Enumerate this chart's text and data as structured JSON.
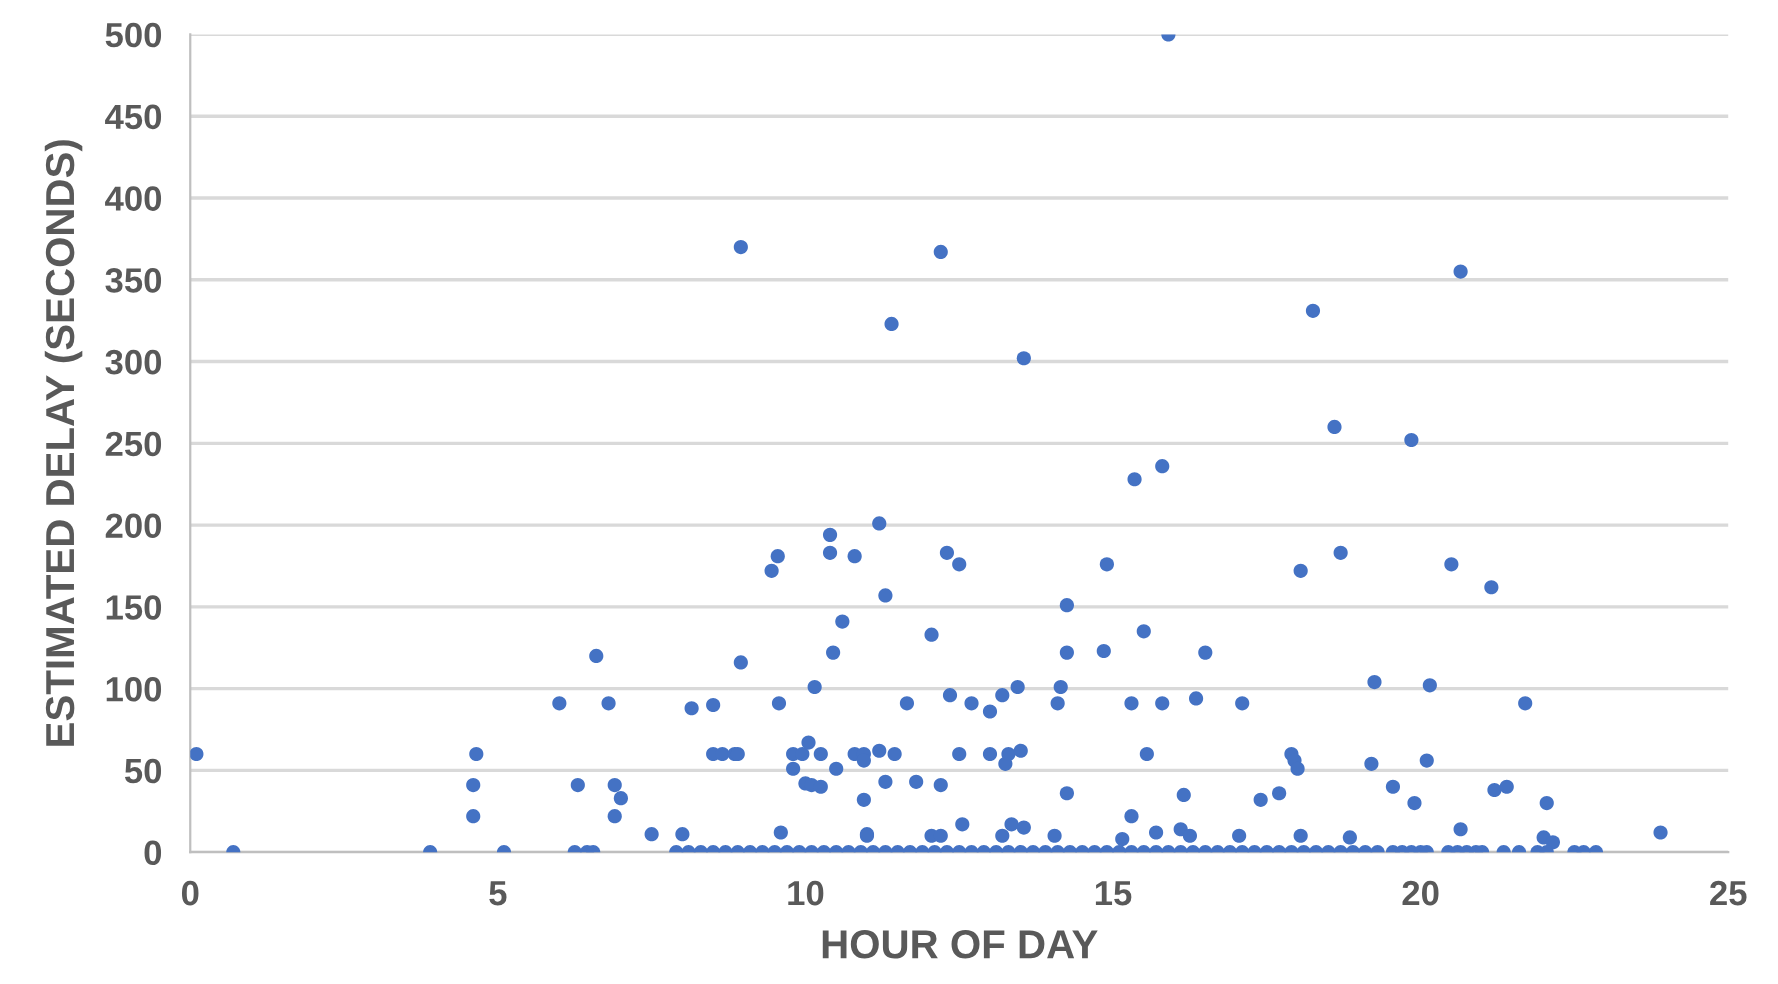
{
  "chart_data": {
    "type": "scatter",
    "xlabel": "HOUR OF DAY",
    "ylabel": "ESTIMATED DELAY (SECONDS)",
    "xlim": [
      0,
      25
    ],
    "xticks": [
      0,
      5,
      10,
      15,
      20,
      25
    ],
    "ylim": [
      0,
      500
    ],
    "yticks": [
      0,
      50,
      100,
      150,
      200,
      250,
      300,
      350,
      400,
      450,
      500
    ],
    "grid": "y",
    "marker": "circle",
    "series": [
      {
        "color": "#4472c4",
        "x": [
          0.1,
          0.7,
          3.9,
          4.6,
          4.6,
          4.65,
          5.1,
          6.0,
          6.25,
          6.3,
          6.45,
          6.55,
          6.6,
          6.8,
          6.9,
          6.9,
          7.0,
          7.5,
          8.0,
          8.15,
          8.5,
          8.5,
          8.65,
          8.85,
          8.9,
          8.95,
          9.45,
          9.55,
          9.57,
          9.6,
          9.8,
          9.95,
          10.25,
          9.8,
          10.05,
          10.0,
          10.1,
          10.15,
          10.25,
          10.4,
          10.4,
          10.45,
          10.5,
          10.6,
          10.8,
          10.8,
          10.95,
          10.95,
          10.95,
          11.0,
          11.4,
          13.55,
          18.25,
          18.6,
          19.85,
          11.2,
          11.3,
          12.3,
          12.5,
          14.9,
          12.05,
          14.25,
          14.25,
          14.85,
          15.5,
          15.35,
          15.8,
          16.5,
          18.05,
          18.7,
          20.5,
          21.15,
          11.65,
          12.35,
          12.7,
          13.0,
          13.2,
          13.45,
          14.1,
          14.15,
          15.3,
          15.8,
          16.35,
          17.1,
          19.25,
          20.15,
          21.7,
          11.2,
          11.45,
          12.5,
          13.0,
          13.25,
          13.3,
          13.5,
          15.55,
          17.9,
          17.95,
          18.0,
          19.2,
          20.1,
          11.3,
          11.8,
          12.2,
          14.25,
          16.15,
          17.4,
          17.7,
          19.55,
          19.9,
          21.2,
          21.4,
          22.05,
          15.3,
          23.9,
          11.0,
          12.05,
          12.2,
          12.55,
          13.2,
          13.35,
          13.55,
          14.05,
          15.15,
          15.7,
          16.1,
          16.25,
          17.05,
          18.05,
          18.85,
          20.65,
          22.0,
          22.15,
          8.95,
          12.2,
          15.9,
          20.65,
          7.9,
          8.1,
          8.3,
          8.5,
          8.7,
          8.9,
          9.1,
          9.3,
          9.5,
          9.7,
          9.9,
          10.1,
          10.3,
          10.5,
          10.7,
          10.9,
          11.1,
          11.3,
          11.5,
          11.7,
          11.9,
          12.1,
          12.3,
          12.5,
          12.7,
          12.9,
          13.1,
          13.3,
          13.5,
          13.7,
          13.9,
          14.1,
          14.3,
          14.5,
          14.7,
          14.9,
          15.1,
          15.3,
          15.5,
          15.7,
          15.9,
          16.1,
          16.3,
          16.5,
          16.7,
          16.9,
          17.1,
          17.3,
          17.5,
          17.7,
          17.9,
          18.1,
          18.3,
          18.5,
          18.7,
          18.9,
          19.1,
          19.3,
          19.55,
          19.7,
          19.85,
          20.0,
          20.1,
          20.45,
          20.6,
          20.75,
          20.9,
          21.0,
          21.35,
          21.6,
          21.9,
          22.05,
          22.5,
          22.65,
          22.85
        ],
        "values": [
          60,
          0,
          0,
          41,
          22,
          60,
          0,
          91,
          0,
          41,
          0,
          0,
          120,
          91,
          41,
          22,
          33,
          11,
          11,
          88,
          90,
          60,
          60,
          60,
          60,
          116,
          172,
          181,
          91,
          12,
          60,
          60,
          60,
          51,
          67,
          42,
          41,
          101,
          40,
          194,
          183,
          122,
          51,
          141,
          181,
          60,
          60,
          56,
          32,
          11,
          323,
          302,
          331,
          260,
          252,
          201,
          157,
          183,
          176,
          176,
          133,
          151,
          122,
          123,
          135,
          228,
          236,
          122,
          172,
          183,
          176,
          162,
          91,
          96,
          91,
          86,
          96,
          101,
          91,
          101,
          91,
          91,
          94,
          91,
          104,
          102,
          91,
          62,
          60,
          60,
          60,
          54,
          60,
          62,
          60,
          60,
          56,
          51,
          54,
          56,
          43,
          43,
          41,
          36,
          35,
          32,
          36,
          40,
          30,
          38,
          40,
          30,
          22,
          12,
          10,
          10,
          10,
          17,
          10,
          17,
          15,
          10,
          8,
          12,
          14,
          10,
          10,
          10,
          9,
          14,
          9,
          6,
          370,
          367,
          500,
          355,
          0,
          0,
          0,
          0,
          0,
          0,
          0,
          0,
          0,
          0,
          0,
          0,
          0,
          0,
          0,
          0,
          0,
          0,
          0,
          0,
          0,
          0,
          0,
          0,
          0,
          0,
          0,
          0,
          0,
          0,
          0,
          0,
          0,
          0,
          0,
          0,
          0,
          0,
          0,
          0,
          0,
          0,
          0,
          0,
          0,
          0,
          0,
          0,
          0,
          0,
          0,
          0,
          0,
          0,
          0,
          0,
          0,
          0,
          0,
          0,
          0,
          0,
          0,
          0,
          0,
          0,
          0,
          0,
          0,
          0,
          0,
          0,
          0,
          0,
          0
        ]
      }
    ]
  }
}
